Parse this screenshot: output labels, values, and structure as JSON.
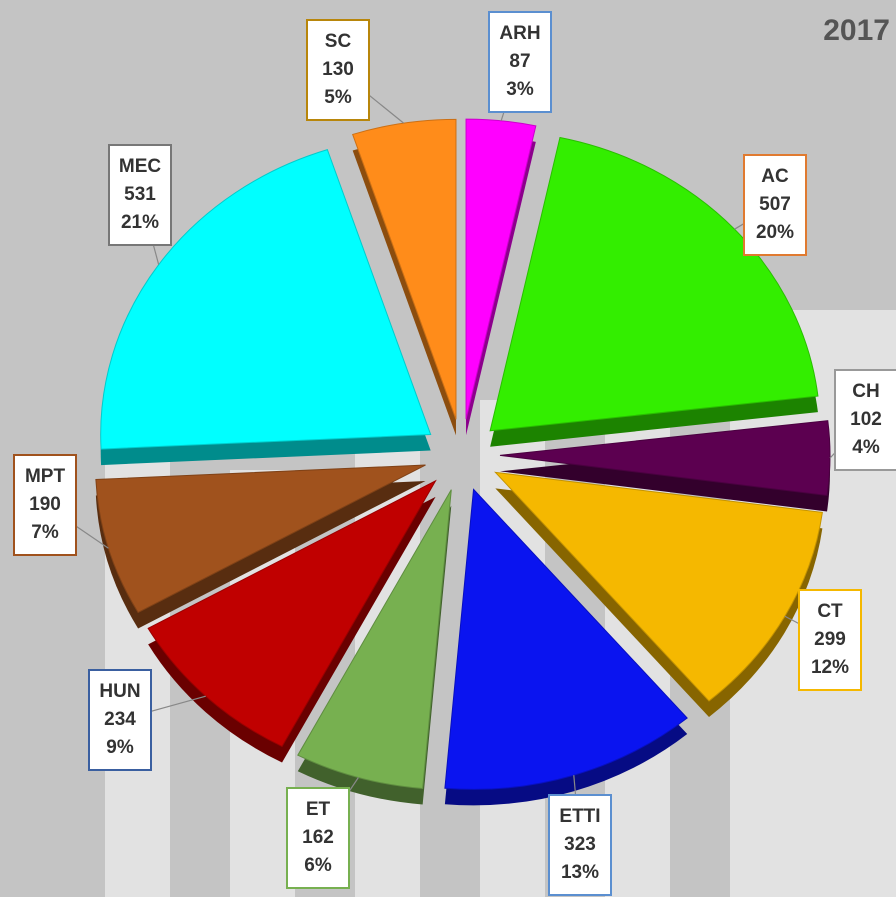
{
  "chart_data": {
    "type": "pie",
    "title": "2017",
    "categories": [
      "ARH",
      "AC",
      "CH",
      "CT",
      "ETTI",
      "ET",
      "HUN",
      "MPT",
      "MEC",
      "SC"
    ],
    "values": [
      87,
      507,
      102,
      299,
      323,
      162,
      234,
      190,
      531,
      130
    ],
    "percent_labels": [
      "3%",
      "20%",
      "4%",
      "12%",
      "13%",
      "6%",
      "9%",
      "7%",
      "21%",
      "5%"
    ],
    "colors": [
      "#ff00ff",
      "#33ee00",
      "#5c0050",
      "#f5b800",
      "#0a14f0",
      "#77b050",
      "#c00000",
      "#a0521d",
      "#00ffff",
      "#ff8c1a"
    ],
    "label_border_colors": [
      "#5b8fd0",
      "#e07a30",
      "#999999",
      "#f5b800",
      "#5b8fd0",
      "#77b050",
      "#3a5fa0",
      "#a0521d",
      "#777777",
      "#b8860b"
    ]
  }
}
